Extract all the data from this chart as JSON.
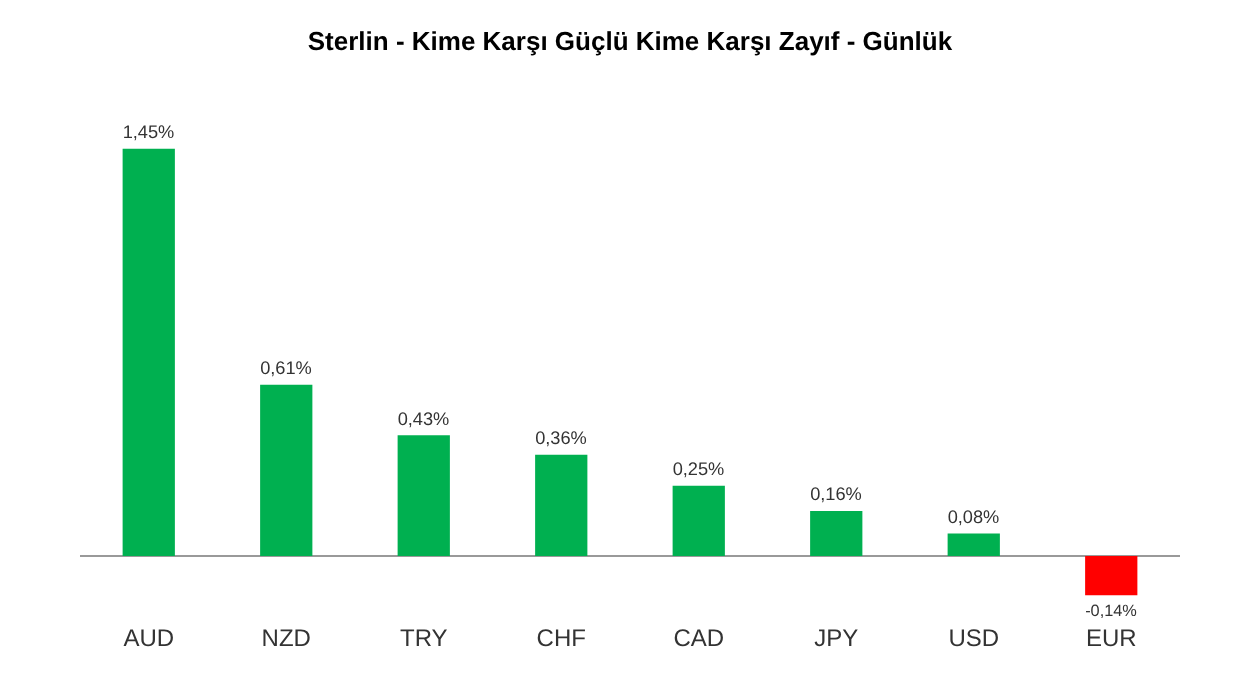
{
  "chart_data": {
    "type": "bar",
    "title": "Sterlin - Kime Karşı Güçlü Kime Karşı Zayıf - Günlük",
    "categories": [
      "AUD",
      "NZD",
      "TRY",
      "CHF",
      "CAD",
      "JPY",
      "USD",
      "EUR"
    ],
    "values": [
      1.45,
      0.61,
      0.43,
      0.36,
      0.25,
      0.16,
      0.08,
      -0.14
    ],
    "colors": [
      "#00b050",
      "#00b050",
      "#00b050",
      "#00b050",
      "#00b050",
      "#00b050",
      "#00b050",
      "#ff0000"
    ],
    "value_labels": [
      "1,45%",
      "0,61%",
      "0,43%",
      "0,36%",
      "0,25%",
      "0,16%",
      "0,08%",
      "-0,14%"
    ],
    "grid": false,
    "legend": false
  }
}
